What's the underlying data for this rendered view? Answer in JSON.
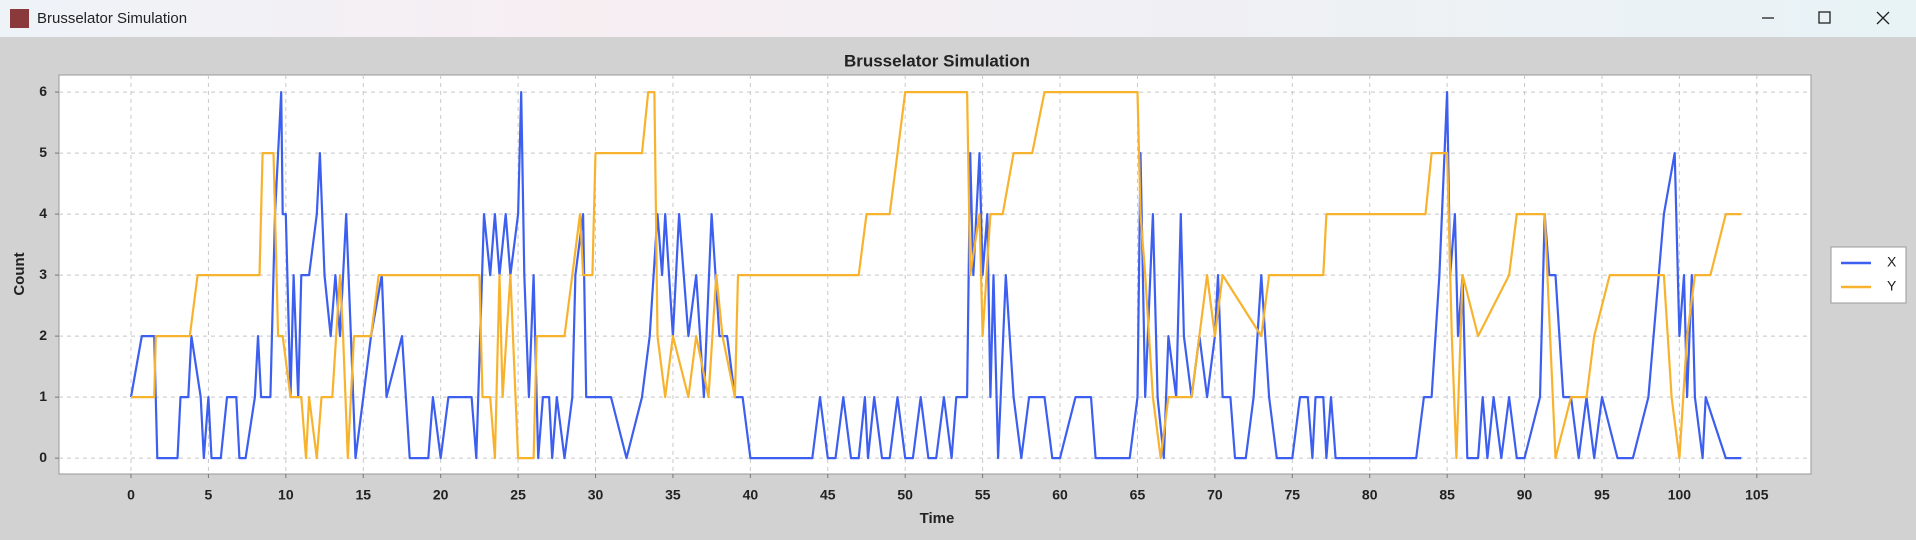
{
  "window": {
    "title": "Brusselator Simulation"
  },
  "chart_data": {
    "type": "line",
    "title": "Brusselator Simulation",
    "x_label": "Time",
    "y_label": "Count",
    "xlim": [
      -4.65,
      108.5
    ],
    "ylim": [
      -0.26,
      6.28
    ],
    "xticks": [
      0,
      5,
      10,
      15,
      20,
      25,
      30,
      35,
      40,
      45,
      50,
      55,
      60,
      65,
      70,
      75,
      80,
      85,
      90,
      95,
      100,
      105
    ],
    "yticks": [
      0,
      1,
      2,
      3,
      4,
      5,
      6
    ],
    "grid": true,
    "legend": "right",
    "series": [
      {
        "name": "X",
        "color": "#3d5ff0",
        "x": [
          0,
          0.7,
          1.5,
          1.7,
          3,
          3.2,
          3.7,
          3.9,
          4.5,
          4.7,
          5,
          5.2,
          5.8,
          6.2,
          6.8,
          7,
          7.4,
          8,
          8.2,
          8.4,
          9,
          9.3,
          9.7,
          9.8,
          10,
          10.3,
          10.5,
          10.8,
          11,
          11.5,
          12,
          12.2,
          12.5,
          12.9,
          13.2,
          13.5,
          13.9,
          14.2,
          14.5,
          15,
          15.5,
          16.2,
          16.5,
          17.5,
          18,
          19.2,
          19.5,
          20,
          20.5,
          22,
          22.3,
          22.8,
          23.2,
          23.5,
          23.8,
          24.2,
          24.5,
          25,
          25.2,
          25.4,
          25.7,
          26,
          26.3,
          26.6,
          27,
          27.2,
          27.5,
          28,
          28.5,
          28.7,
          29.2,
          29.4,
          30,
          31,
          32,
          33,
          33.5,
          34,
          34.3,
          34.5,
          35,
          35.4,
          36,
          36.5,
          37,
          37.5,
          38,
          38.5,
          39,
          39.5,
          40,
          44,
          44.5,
          45,
          45.5,
          46,
          46.5,
          47,
          47.4,
          47.6,
          48,
          48.5,
          49,
          49.5,
          50,
          50.5,
          51,
          51.5,
          52,
          52.5,
          53,
          53.3,
          54,
          54.2,
          54.4,
          54.8,
          55,
          55.3,
          55.5,
          55.7,
          56,
          56.5,
          57,
          57.5,
          58,
          59,
          59.5,
          60,
          61,
          62,
          62.3,
          64.5,
          65,
          65.2,
          65.5,
          66,
          66.3,
          66.7,
          67,
          67.5,
          67.8,
          68,
          68.5,
          69,
          69.5,
          70,
          70.2,
          70.5,
          71,
          71.3,
          72,
          72.5,
          73,
          73.5,
          74,
          75,
          75.5,
          76,
          76.3,
          76.5,
          77,
          77.2,
          77.5,
          77.8,
          83,
          83.5,
          84,
          84.5,
          85,
          85.2,
          85.5,
          85.7,
          86,
          86.3,
          87,
          87.3,
          87.6,
          88,
          88.5,
          89,
          89.5,
          90,
          91,
          91.3,
          91.6,
          92,
          92.5,
          93,
          93.5,
          94,
          94.5,
          95,
          96,
          97,
          98,
          99,
          99.7,
          100,
          100.3,
          100.5,
          100.8,
          101,
          101.5,
          101.7,
          103,
          104
        ],
        "values": [
          1,
          2,
          2,
          0,
          0,
          1,
          1,
          2,
          1,
          0,
          1,
          0,
          0,
          1,
          1,
          0,
          0,
          1,
          2,
          1,
          1,
          4,
          6,
          4,
          4,
          1,
          3,
          1,
          3,
          3,
          4,
          5,
          3,
          2,
          3,
          2,
          4,
          2,
          0,
          1,
          2,
          3,
          1,
          2,
          0,
          0,
          1,
          0,
          1,
          1,
          0,
          4,
          3,
          4,
          3,
          4,
          3,
          4,
          6,
          3,
          1,
          3,
          0,
          1,
          1,
          0,
          1,
          0,
          1,
          3,
          4,
          1,
          1,
          1,
          0,
          1,
          2,
          4,
          3,
          4,
          2,
          4,
          2,
          3,
          1,
          4,
          2,
          2,
          1,
          1,
          0,
          0,
          1,
          0,
          0,
          1,
          0,
          0,
          1,
          0,
          1,
          0,
          0,
          1,
          0,
          0,
          1,
          0,
          0,
          1,
          0,
          1,
          1,
          5,
          3,
          5,
          3,
          4,
          1,
          3,
          0,
          3,
          1,
          0,
          1,
          1,
          0,
          0,
          1,
          1,
          0,
          0,
          1,
          5,
          1,
          4,
          1,
          0,
          2,
          1,
          4,
          2,
          1,
          2,
          1,
          2,
          3,
          1,
          1,
          0,
          0,
          1,
          3,
          1,
          0,
          0,
          1,
          1,
          0,
          1,
          1,
          0,
          1,
          0,
          0,
          1,
          1,
          3,
          6,
          3,
          4,
          2,
          3,
          0,
          0,
          1,
          0,
          1,
          0,
          1,
          0,
          0,
          1,
          4,
          3,
          3,
          1,
          1,
          0,
          1,
          0,
          1,
          0,
          0,
          1,
          4,
          5,
          2,
          3,
          1,
          3,
          1,
          0,
          1,
          0,
          0
        ]
      },
      {
        "name": "Y",
        "color": "#f8b32e",
        "x": [
          0,
          1.5,
          1.6,
          3.8,
          4.3,
          8.3,
          8.5,
          9.2,
          9.5,
          9.8,
          10.3,
          11,
          11.3,
          11.5,
          12,
          12.3,
          13,
          13.5,
          13.7,
          14,
          14.4,
          15.5,
          16,
          22.5,
          22.7,
          23.2,
          23.5,
          23.8,
          24,
          24.5,
          25,
          26,
          26.2,
          28,
          28.5,
          29,
          29.2,
          29.8,
          30,
          33,
          33.4,
          33.8,
          34,
          34.5,
          35,
          36,
          36.5,
          37.3,
          37.8,
          38.2,
          39,
          39.2,
          47,
          47.5,
          49,
          49.5,
          50,
          54,
          54.2,
          54.8,
          55,
          55.5,
          56.3,
          57,
          58.2,
          59,
          65,
          65.2,
          65.5,
          66,
          66.5,
          67,
          68.5,
          69.5,
          70,
          70.5,
          73,
          73.5,
          77,
          77.2,
          83.6,
          84,
          85,
          85.3,
          85.6,
          86,
          87,
          89,
          89.5,
          91.3,
          92,
          93,
          94,
          94.5,
          95.5,
          99,
          99.5,
          100,
          100.5,
          101,
          102,
          103,
          104
        ],
        "values": [
          1,
          1,
          2,
          2,
          3,
          3,
          5,
          5,
          2,
          2,
          1,
          1,
          0,
          1,
          0,
          1,
          1,
          3,
          2,
          0,
          2,
          2,
          3,
          3,
          1,
          1,
          0,
          3,
          1,
          3,
          0,
          0,
          2,
          2,
          3,
          4,
          3,
          3,
          5,
          5,
          6,
          6,
          2,
          1,
          2,
          1,
          2,
          1,
          3,
          2,
          1,
          3,
          3,
          4,
          4,
          5,
          6,
          6,
          3,
          4,
          2,
          4,
          4,
          5,
          5,
          6,
          6,
          4,
          3,
          1,
          0,
          1,
          1,
          3,
          2,
          3,
          2,
          3,
          3,
          4,
          4,
          5,
          5,
          2,
          0,
          3,
          2,
          3,
          4,
          4,
          0,
          1,
          1,
          2,
          3,
          3,
          1,
          0,
          2,
          3,
          3,
          4,
          4
        ]
      }
    ]
  }
}
